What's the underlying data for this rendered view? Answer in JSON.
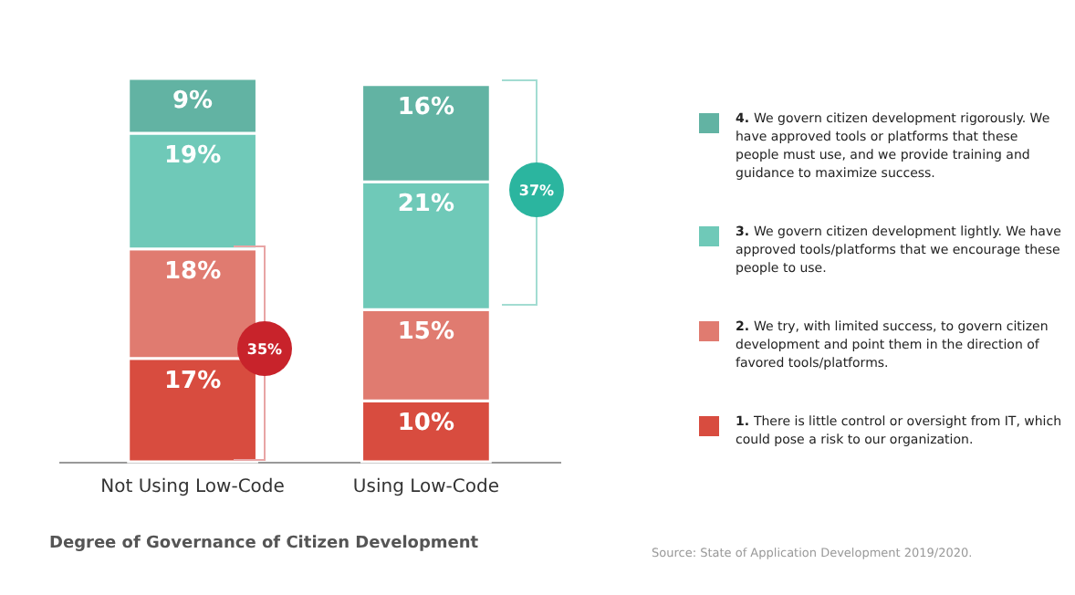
{
  "chart_data": {
    "type": "bar",
    "stacked": true,
    "legend": "right",
    "title": "Degree of Governance of Citizen Development",
    "categories": [
      "Not Using Low-Code",
      "Using Low-Code"
    ],
    "series": [
      {
        "name": "1. There is little control or oversight from IT, which could pose a risk to our organization.",
        "color": "#d84c3f",
        "values": [
          17,
          10
        ],
        "value_labels": [
          "17%",
          "10%"
        ]
      },
      {
        "name": "2. We try, with limited success, to govern citizen development and point them in the direction of favored tools/platforms.",
        "color": "#e07b70",
        "values": [
          18,
          15
        ],
        "value_labels": [
          "18%",
          "15%"
        ]
      },
      {
        "name": "3. We govern citizen development lightly. We have approved tools/platforms that we encourage these people to use.",
        "color": "#6fc9b8",
        "values": [
          19,
          21
        ],
        "value_labels": [
          "19%",
          "21%"
        ]
      },
      {
        "name": "4. We govern citizen development rigorously. We have approved tools or platforms that these people must use, and we provide training and guidance to maximize success.",
        "color": "#62b3a3",
        "values": [
          9,
          16
        ],
        "value_labels": [
          "9%",
          "16%"
        ]
      }
    ],
    "annotations": [
      "35%",
      "37%",
      "Source: State of Application Development 2019/2020."
    ]
  }
}
